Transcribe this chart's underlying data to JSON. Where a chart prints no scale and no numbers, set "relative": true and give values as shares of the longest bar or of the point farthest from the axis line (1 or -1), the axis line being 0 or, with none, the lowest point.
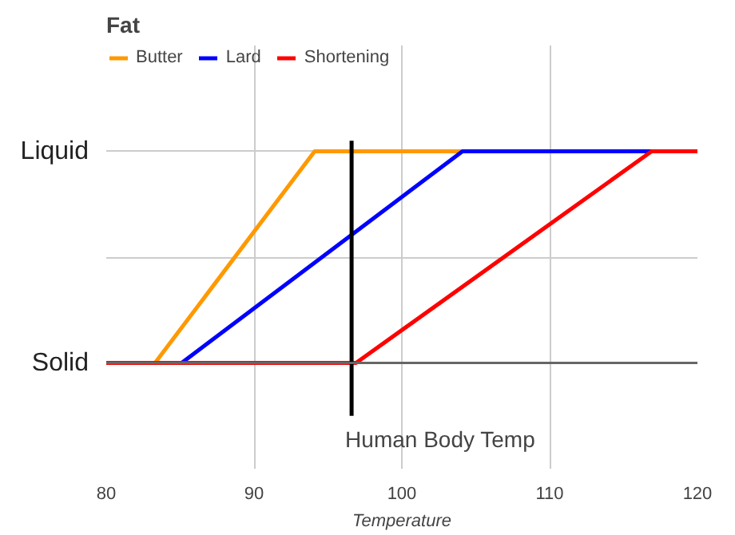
{
  "chart_data": {
    "type": "line",
    "title": "Fat",
    "xlabel": "Temperature",
    "xlim": [
      80,
      120
    ],
    "xticks": [
      80,
      90,
      100,
      110,
      120
    ],
    "relative": true,
    "annotations": [
      "Liquid",
      "Solid"
    ],
    "grid": true,
    "legend": "top left",
    "marker": "none",
    "line_style": "solid",
    "series": [
      {
        "name": "Butter",
        "color": "#ff9900",
        "x": [
          80,
          83.3,
          94.1,
          104.1
        ],
        "values": [
          0,
          0,
          1,
          1
        ]
      },
      {
        "name": "Lard",
        "color": "#0000ff",
        "x": [
          80,
          85.1,
          104.1,
          116.9
        ],
        "values": [
          0,
          0,
          1,
          1
        ]
      },
      {
        "name": "Shortening",
        "color": "#ff0000",
        "x": [
          80,
          96.9,
          116.9,
          120
        ],
        "values": [
          0,
          0,
          1,
          1
        ]
      }
    ],
    "ref_lines": [
      {
        "axis": "x",
        "value": 96.6,
        "label": "Human Body Temp",
        "color": "#000000"
      }
    ]
  }
}
